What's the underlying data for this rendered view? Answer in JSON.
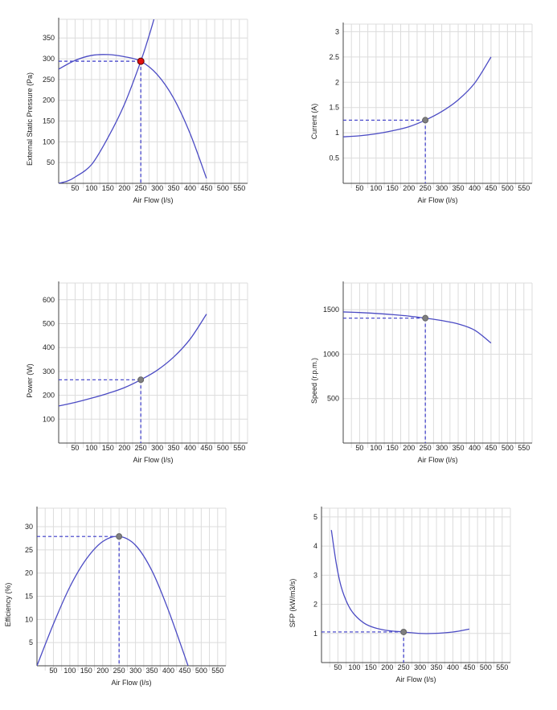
{
  "colors": {
    "curve": "#4b4bc4",
    "guide": "#3a3ac8",
    "grid": "#dcdcdc",
    "axis": "#444444",
    "point_main": "#e01010",
    "point_other": "#7f7f7f"
  },
  "chart_data": [
    {
      "id": "pressure",
      "type": "line",
      "xlabel": "Air Flow (l/s)",
      "ylabel": "External Static Pressure (Pa)",
      "xlim": [
        0,
        575
      ],
      "ylim": [
        0,
        395
      ],
      "xticks": [
        50,
        100,
        150,
        200,
        250,
        300,
        350,
        400,
        450,
        500,
        550
      ],
      "yticks": [
        50,
        100,
        150,
        200,
        250,
        300,
        350
      ],
      "grid": true,
      "series": [
        {
          "role": "fan-curve",
          "x": [
            0,
            50,
            100,
            150,
            200,
            250,
            300,
            350,
            400,
            450
          ],
          "y": [
            275,
            296,
            308,
            310,
            305,
            294,
            262,
            205,
            120,
            12
          ]
        },
        {
          "role": "system-curve",
          "x": [
            0,
            25,
            50,
            100,
            150,
            200,
            250,
            275,
            290
          ],
          "y": [
            0,
            5,
            15,
            45,
            110,
            190,
            294,
            355,
            395
          ]
        }
      ],
      "operating_point": {
        "x": 250,
        "y": 294,
        "highlight": true
      }
    },
    {
      "id": "current",
      "type": "line",
      "xlabel": "Air Flow (l/s)",
      "ylabel": "Current (A)",
      "xlim": [
        0,
        575
      ],
      "ylim": [
        0,
        3.15
      ],
      "xticks": [
        50,
        100,
        150,
        200,
        250,
        300,
        350,
        400,
        450,
        500,
        550
      ],
      "yticks": [
        0.5,
        1,
        1.5,
        2,
        2.5,
        3
      ],
      "grid": true,
      "series": [
        {
          "role": "curve",
          "x": [
            0,
            50,
            100,
            150,
            200,
            250,
            300,
            350,
            400,
            450
          ],
          "y": [
            0.92,
            0.94,
            0.98,
            1.04,
            1.12,
            1.25,
            1.42,
            1.65,
            1.98,
            2.5
          ]
        }
      ],
      "operating_point": {
        "x": 250,
        "y": 1.25,
        "highlight": false
      }
    },
    {
      "id": "power",
      "type": "line",
      "xlabel": "Air Flow (l/s)",
      "ylabel": "Power (W)",
      "xlim": [
        0,
        575
      ],
      "ylim": [
        0,
        670
      ],
      "xticks": [
        50,
        100,
        150,
        200,
        250,
        300,
        350,
        400,
        450,
        500,
        550
      ],
      "yticks": [
        100,
        200,
        300,
        400,
        500,
        600
      ],
      "grid": true,
      "series": [
        {
          "role": "curve",
          "x": [
            0,
            50,
            100,
            150,
            200,
            250,
            300,
            350,
            400,
            450
          ],
          "y": [
            155,
            170,
            188,
            208,
            232,
            265,
            305,
            360,
            435,
            540
          ]
        }
      ],
      "operating_point": {
        "x": 250,
        "y": 265,
        "highlight": false
      }
    },
    {
      "id": "speed",
      "type": "line",
      "xlabel": "Air Flow (l/s)",
      "ylabel": "Speed (r.p.m.)",
      "xlim": [
        0,
        575
      ],
      "ylim": [
        0,
        1800
      ],
      "xticks": [
        50,
        100,
        150,
        200,
        250,
        300,
        350,
        400,
        450,
        500,
        550
      ],
      "yticks": [
        500,
        1000,
        1500
      ],
      "grid": true,
      "series": [
        {
          "role": "curve",
          "x": [
            0,
            50,
            100,
            150,
            200,
            250,
            300,
            350,
            400,
            450
          ],
          "y": [
            1475,
            1468,
            1458,
            1445,
            1428,
            1405,
            1378,
            1340,
            1270,
            1125
          ]
        }
      ],
      "operating_point": {
        "x": 250,
        "y": 1405,
        "highlight": false
      }
    },
    {
      "id": "efficiency",
      "type": "line",
      "xlabel": "Air Flow (l/s)",
      "ylabel": "Efficiency (%)",
      "xlim": [
        0,
        575
      ],
      "ylim": [
        0,
        34
      ],
      "xticks": [
        50,
        100,
        150,
        200,
        250,
        300,
        350,
        400,
        450,
        500,
        550
      ],
      "yticks": [
        5,
        10,
        15,
        20,
        25,
        30
      ],
      "grid": true,
      "series": [
        {
          "role": "curve",
          "x": [
            0,
            50,
            100,
            150,
            200,
            250,
            300,
            350,
            400,
            460
          ],
          "y": [
            0,
            9,
            17,
            23,
            26.8,
            27.9,
            26,
            20.5,
            12,
            0
          ]
        }
      ],
      "operating_point": {
        "x": 250,
        "y": 27.9,
        "highlight": false
      }
    },
    {
      "id": "sfp",
      "type": "line",
      "xlabel": "Air Flow (l/s)",
      "ylabel": "SFP (kW/m3/s)",
      "xlim": [
        0,
        575
      ],
      "ylim": [
        0,
        5.3
      ],
      "xticks": [
        50,
        100,
        150,
        200,
        250,
        300,
        350,
        400,
        450,
        500,
        550
      ],
      "yticks": [
        1,
        2,
        3,
        4,
        5
      ],
      "grid": true,
      "series": [
        {
          "role": "curve",
          "x": [
            30,
            45,
            60,
            80,
            100,
            130,
            160,
            200,
            250,
            300,
            340,
            400,
            450
          ],
          "y": [
            4.55,
            3.4,
            2.6,
            2.0,
            1.65,
            1.35,
            1.2,
            1.1,
            1.05,
            1.0,
            1.0,
            1.05,
            1.15
          ]
        }
      ],
      "operating_point": {
        "x": 250,
        "y": 1.05,
        "highlight": false
      }
    }
  ]
}
